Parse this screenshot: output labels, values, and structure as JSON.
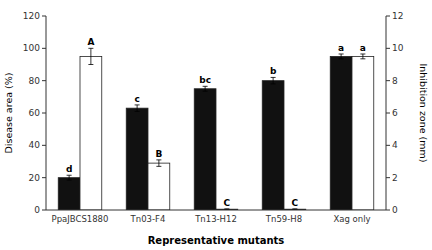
{
  "chart_data": {
    "type": "bar",
    "categories": [
      "PpaJBCS1880",
      "Tn03-F4",
      "Tn13-H12",
      "Tn59-H8",
      "Xag only"
    ],
    "xlabel": "Representative mutants",
    "ylabel": "Disease area (%)",
    "y2label": "Inhibition zone (mm)",
    "series": [
      {
        "color": "#111111",
        "values": [
          20,
          63,
          75,
          80,
          95
        ],
        "errors": [
          1.5,
          2.0,
          1.5,
          2.0,
          1.5
        ],
        "annotations": [
          "d",
          "c",
          "bc",
          "b",
          "a"
        ]
      },
      {
        "color": "#ffffff",
        "axis": "y2",
        "values": [
          9.5,
          2.9,
          0.05,
          0.05,
          9.5
        ],
        "errors": [
          0.5,
          0.2,
          0.02,
          0.02,
          0.15
        ],
        "annotations": [
          "A",
          "B",
          "C",
          "C",
          "a"
        ]
      }
    ],
    "ylim": [
      0,
      120
    ],
    "yticks": [
      0,
      20,
      40,
      60,
      80,
      100,
      120
    ],
    "y2lim": [
      0,
      12
    ],
    "y2ticks": [
      0,
      2,
      4,
      6,
      8,
      10,
      12
    ],
    "grid": false
  }
}
